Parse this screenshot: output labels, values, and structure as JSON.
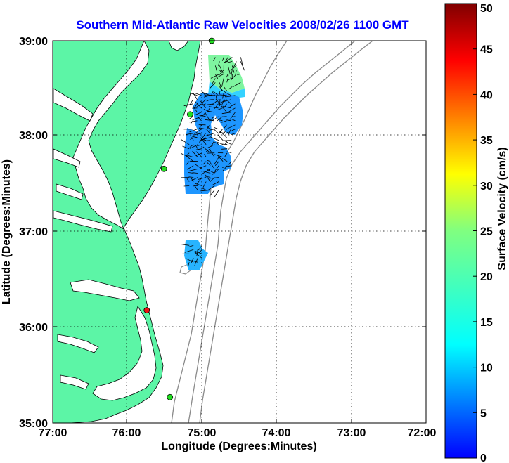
{
  "title": "Southern Mid-Atlantic Raw Velocities 2008/02/26 1100 GMT",
  "xlabel": "Longitude (Degrees:Minutes)",
  "ylabel": "Latitude (Degrees:Minutes)",
  "colorbar_label": "Surface Velocity (cm/s)",
  "x_ticks": [
    {
      "value": -77,
      "label": "77:00"
    },
    {
      "value": -76,
      "label": "76:00"
    },
    {
      "value": -75,
      "label": "75:00"
    },
    {
      "value": -74,
      "label": "74:00"
    },
    {
      "value": -73,
      "label": "73:00"
    },
    {
      "value": -72,
      "label": "72:00"
    }
  ],
  "y_ticks": [
    {
      "value": 35,
      "label": "35:00"
    },
    {
      "value": 36,
      "label": "36:00"
    },
    {
      "value": 37,
      "label": "37:00"
    },
    {
      "value": 38,
      "label": "38:00"
    },
    {
      "value": 39,
      "label": "39:00"
    }
  ],
  "colorbar_ticks": [
    {
      "value": 0,
      "label": "0"
    },
    {
      "value": 5,
      "label": "5"
    },
    {
      "value": 10,
      "label": "10"
    },
    {
      "value": 15,
      "label": "15"
    },
    {
      "value": 20,
      "label": "20"
    },
    {
      "value": 25,
      "label": "25"
    },
    {
      "value": 30,
      "label": "30"
    },
    {
      "value": 35,
      "label": "35"
    },
    {
      "value": 40,
      "label": "40"
    },
    {
      "value": 45,
      "label": "45"
    },
    {
      "value": 50,
      "label": "50"
    }
  ],
  "colors": {
    "land": "#5cf5a6",
    "coast": "#000000",
    "bathymetry": "#8a8a8a",
    "grid": "#000000",
    "title": "#0000ff",
    "station_active": "#22dd22",
    "station_inactive": "#ee1111"
  },
  "chart_data": {
    "type": "scatter",
    "title": "Southern Mid-Atlantic Raw Velocities 2008/02/26 1100 GMT",
    "xlabel": "Longitude (Degrees:Minutes)",
    "ylabel": "Latitude (Degrees:Minutes)",
    "xlim": [
      -77,
      -72
    ],
    "ylim": [
      35,
      39
    ],
    "grid": true,
    "colorbar": {
      "label": "Surface Velocity (cm/s)",
      "range": [
        0,
        50
      ],
      "colormap": "jet"
    },
    "stations": [
      {
        "lon": -74.87,
        "lat": 39.0,
        "status": "active"
      },
      {
        "lon": -75.16,
        "lat": 38.23,
        "status": "active"
      },
      {
        "lon": -75.51,
        "lat": 37.66,
        "status": "active"
      },
      {
        "lon": -75.74,
        "lat": 36.18,
        "status": "inactive"
      },
      {
        "lon": -75.43,
        "lat": 35.27,
        "status": "active"
      }
    ],
    "velocity_patches": [
      {
        "lon_range": [
          -74.85,
          -74.48
        ],
        "lat_range": [
          38.5,
          38.85
        ],
        "speed": 16
      },
      {
        "lon_range": [
          -74.9,
          -74.65
        ],
        "lat_range": [
          38.35,
          38.5
        ],
        "speed": 12
      },
      {
        "lon_range": [
          -75.15,
          -74.55
        ],
        "lat_range": [
          37.98,
          38.45
        ],
        "speed": 7
      },
      {
        "lon_range": [
          -75.2,
          -74.6
        ],
        "lat_range": [
          37.68,
          37.98
        ],
        "speed": 6
      },
      {
        "lon_range": [
          -75.2,
          -74.75
        ],
        "lat_range": [
          37.4,
          37.68
        ],
        "speed": 5
      },
      {
        "lon_range": [
          -75.2,
          -74.98
        ],
        "lat_range": [
          36.68,
          36.88
        ],
        "speed": 8
      }
    ]
  }
}
